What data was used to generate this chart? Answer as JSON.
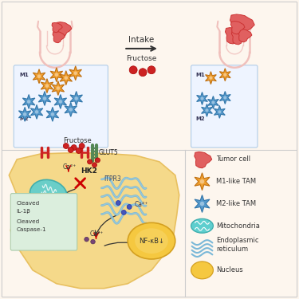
{
  "bg_color": "#fdf6ee",
  "panel_color": "#fef9f3",
  "intake_label": "Intake",
  "fructose_label": "Fructose",
  "glut5_label": "GLUT5",
  "hk2_label": "HK2",
  "itpr3_label": "ITPR3",
  "nfkb_label": "NF-κB↓",
  "tumor_cell_label": "Tumor cell",
  "m1_tam_label": "M1-like TAM",
  "m2_tam_label": "M2-like TAM",
  "mito_label": "Mitochondria",
  "er_label": "Endoplasmic\nreticulum",
  "nucleus_label": "Nucleus",
  "colon_color": "#f0c0bc",
  "cell_fill": "#f5d98a",
  "cell_edge": "#e8c060",
  "mito_fill": "#5ecece",
  "mito_edge": "#3aacac",
  "er_fill": "#a8d8ea",
  "er_line": "#7ab8d8",
  "nucleus_fill": "#f5c840",
  "nucleus_edge": "#d4a020",
  "tumor_color": "#e05555",
  "tumor_edge": "#cc3333",
  "m1_color": "#f0a030",
  "m1_edge": "#c07010",
  "m2_color": "#5599cc",
  "m2_edge": "#3377aa",
  "red_dot": "#cc2222",
  "inset_fill": "#eef4ff",
  "inset_edge": "#b0cce8",
  "glut5_color": "#558855",
  "receptor_color": "#cc2222",
  "arrow_color": "#333333",
  "cleaved_fill": "#dbeedd",
  "cleaved_edge": "#aaccaa"
}
